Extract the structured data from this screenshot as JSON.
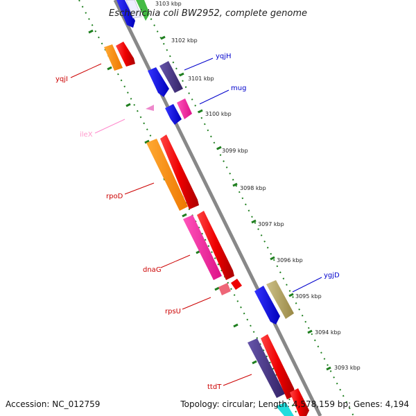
{
  "title": "Escherichia coli BW2952, complete genome",
  "footer": {
    "accession": "Accession: NC_012759",
    "summary": "Topology: circular; Length: 4,578,159 bp; Genes: 4,194"
  },
  "colors": {
    "backbone": "#888888",
    "tick": "#1f7f1f",
    "label_red": "#cc0000",
    "label_blue": "#0000cc",
    "label_pink": "#ff88cc"
  },
  "ticks": [
    "3103 kbp",
    "3102 kbp",
    "3101 kbp",
    "3100 kbp",
    "3099 kbp",
    "3098 kbp",
    "3097 kbp",
    "3096 kbp",
    "3095 kbp",
    "3094 kbp",
    "3093 kbp"
  ],
  "genes": [
    {
      "name": "yqjI",
      "color": "#cc0000"
    },
    {
      "name": "yqjH",
      "color": "#0000cc"
    },
    {
      "name": "mug",
      "color": "#0000cc"
    },
    {
      "name": "ileX",
      "color": "#ff99cc"
    },
    {
      "name": "rpoD",
      "color": "#cc0000"
    },
    {
      "name": "dnaG",
      "color": "#cc0000"
    },
    {
      "name": "rpsU",
      "color": "#cc0000"
    },
    {
      "name": "ygjD",
      "color": "#0000cc"
    },
    {
      "name": "ttdT",
      "color": "#cc0000"
    }
  ]
}
